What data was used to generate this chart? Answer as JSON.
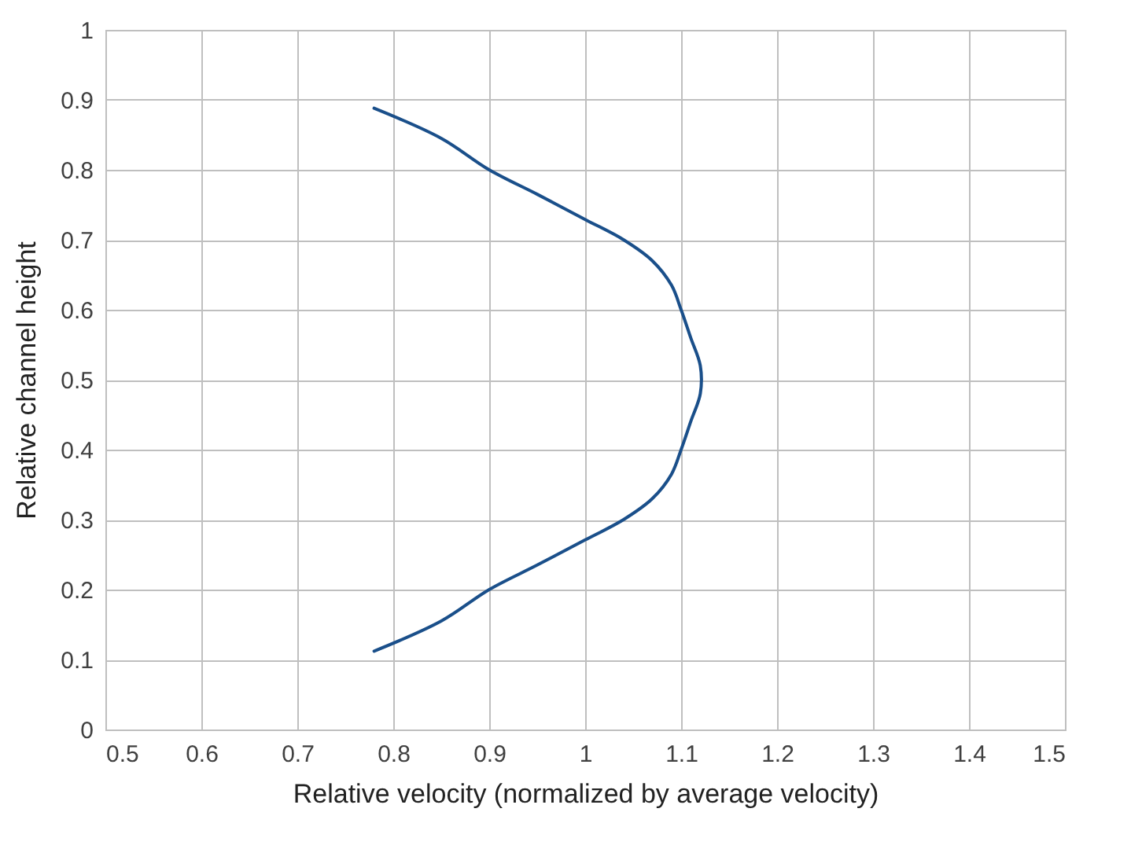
{
  "chart_data": {
    "type": "line",
    "xlabel": "Relative velocity (normalized by average velocity)",
    "ylabel": "Relative channel height",
    "x": [
      0.78,
      0.85,
      0.9,
      0.95,
      1.0,
      1.04,
      1.07,
      1.09,
      1.1,
      1.11,
      1.12,
      1.12,
      1.11,
      1.1,
      1.09,
      1.07,
      1.04,
      1.0,
      0.95,
      0.9,
      0.85,
      0.78
    ],
    "series": [
      {
        "color": "#1a4f8a",
        "values": [
          0.888,
          0.845,
          0.8,
          0.765,
          0.729,
          0.7,
          0.67,
          0.635,
          0.6,
          0.56,
          0.52,
          0.48,
          0.44,
          0.4,
          0.365,
          0.33,
          0.3,
          0.271,
          0.235,
          0.2,
          0.155,
          0.112
        ]
      }
    ],
    "xlim": [
      0.5,
      1.5
    ],
    "xticks": [
      0.5,
      0.6,
      0.7,
      0.8,
      0.9,
      1,
      1.1,
      1.2,
      1.3,
      1.4,
      1.5
    ],
    "ylim": [
      0,
      1
    ],
    "yticks": [
      0,
      0.1,
      0.2,
      0.3,
      0.4,
      0.5,
      0.6,
      0.7,
      0.8,
      0.9,
      1
    ],
    "grid": true,
    "marker": "none",
    "line_style": "solid"
  }
}
